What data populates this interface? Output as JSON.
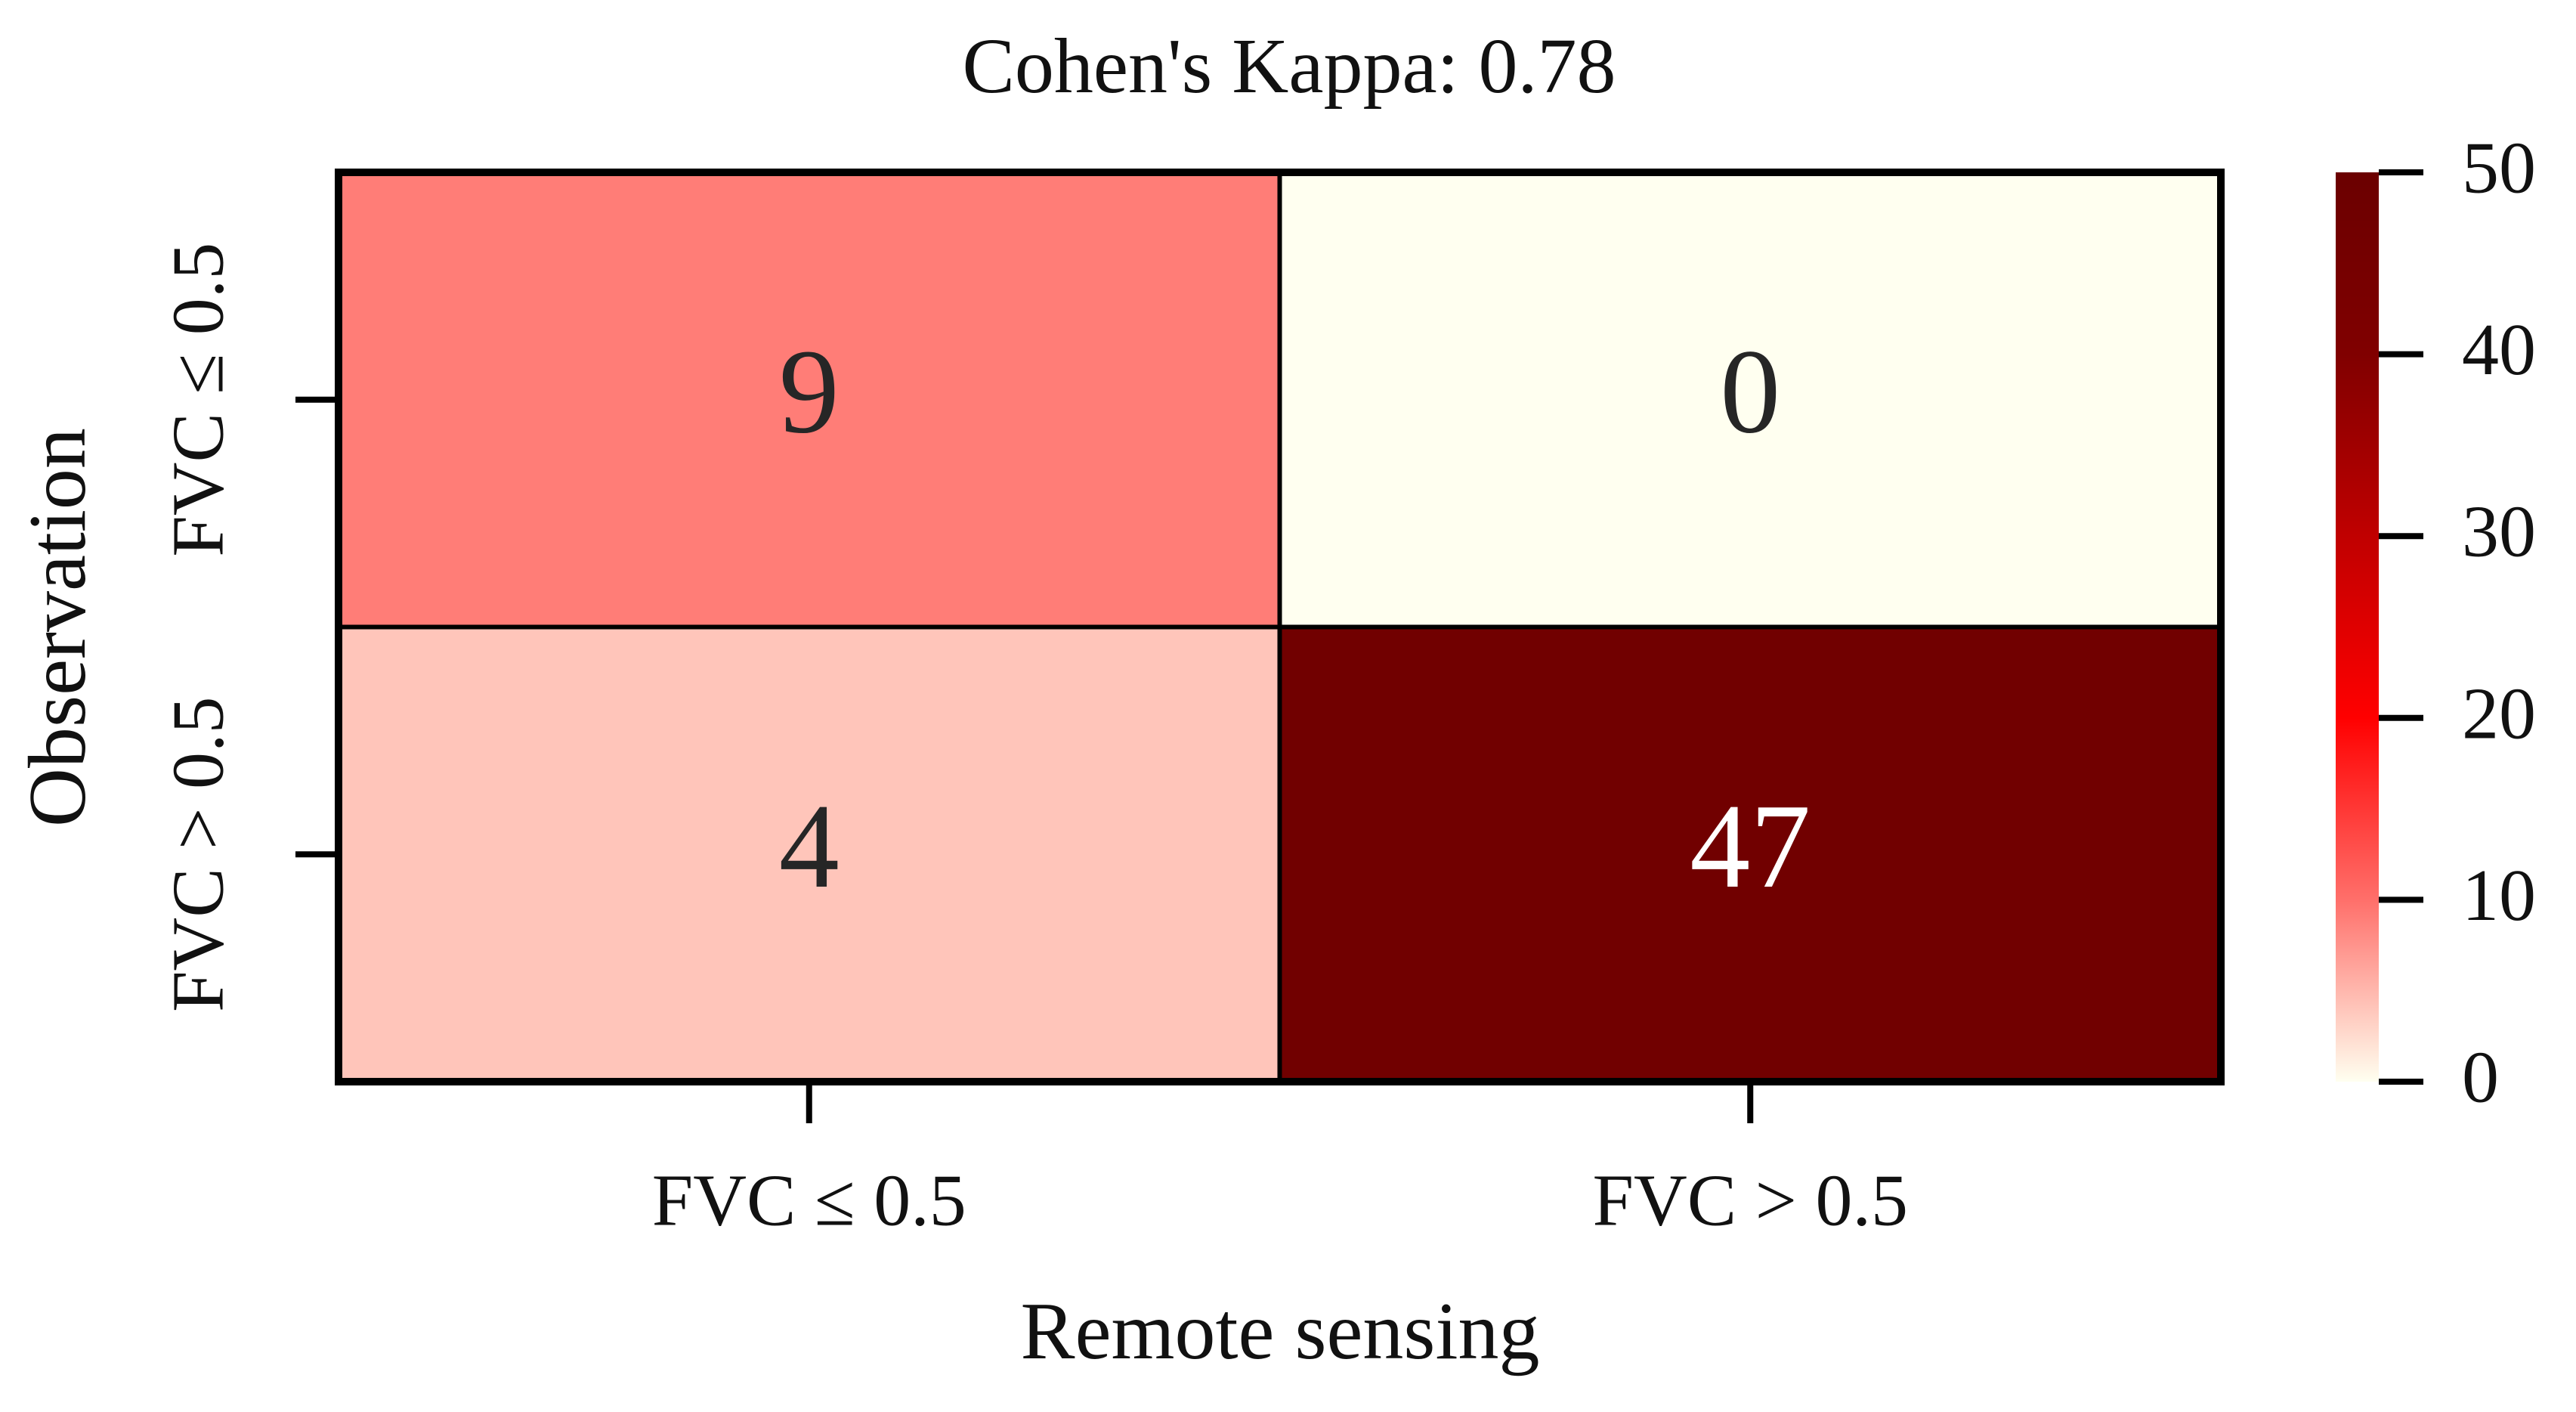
{
  "chart_data": {
    "type": "heatmap",
    "title": "Cohen's Kappa: 0.78",
    "x_label": "Remote sensing",
    "y_label": "Observation",
    "x_categories": [
      "FVC ≤ 0.5",
      "FVC > 0.5"
    ],
    "y_categories": [
      "FVC ≤ 0.5",
      "FVC > 0.5"
    ],
    "values": [
      [
        9,
        0
      ],
      [
        4,
        47
      ]
    ],
    "colors": [
      "#fffff0",
      "#ff6f6a",
      "#ff0000",
      "#c00000",
      "#800000",
      "#6b0000"
    ],
    "clim": [
      0,
      50
    ],
    "cticks": [
      0,
      10,
      20,
      30,
      40,
      50
    ]
  }
}
